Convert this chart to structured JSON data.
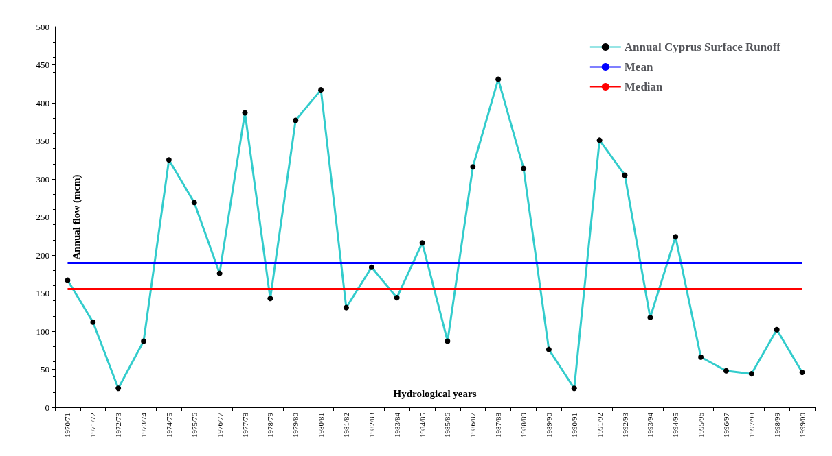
{
  "chart_data": {
    "type": "line",
    "xlabel": "Hydrological years",
    "ylabel": "Annual flow (mcm)",
    "categories": [
      "1970/71",
      "1971/72",
      "1972/73",
      "1973/74",
      "1974/75",
      "1975/76",
      "1976/77",
      "1977/78",
      "1978/79",
      "1979/80",
      "1980/81",
      "1981/82",
      "1982/83",
      "1983/84",
      "1984/85",
      "1985/86",
      "1986/87",
      "1987/88",
      "1988/89",
      "1989/90",
      "1990/91",
      "1991/92",
      "1992/93",
      "1993/94",
      "1994/95",
      "1995/96",
      "1996/97",
      "1997/98",
      "1998/99",
      "1999/00"
    ],
    "series": [
      {
        "name": "Annual Cyprus Surface Runoff",
        "color": "#33cccc",
        "values": [
          167,
          112,
          25,
          87,
          325,
          269,
          176,
          387,
          143,
          377,
          417,
          131,
          184,
          144,
          216,
          87,
          316,
          431,
          314,
          76,
          25,
          351,
          305,
          118,
          224,
          66,
          48,
          44,
          102,
          46
        ]
      }
    ],
    "ref_lines": [
      {
        "axis": "y",
        "value": 190,
        "label": "Mean",
        "color": "#0000ff"
      },
      {
        "axis": "y",
        "value": 156,
        "label": "Median",
        "color": "#ff0000"
      }
    ],
    "ylim": [
      0,
      500
    ],
    "yticks": [
      0,
      50,
      100,
      150,
      200,
      250,
      300,
      350,
      400,
      450,
      500
    ],
    "marker": "circle",
    "line_style": "solid",
    "grid": false,
    "legend": "top right"
  }
}
